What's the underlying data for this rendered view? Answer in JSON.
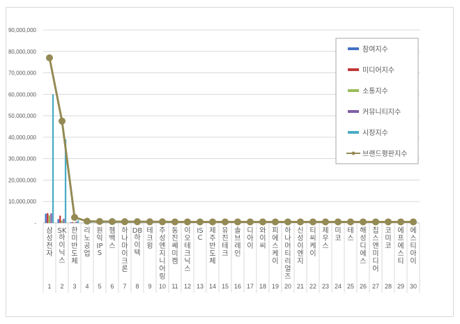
{
  "chart_data": {
    "type": "bar",
    "title": "",
    "xlabel": "",
    "ylabel": "",
    "ylim": [
      0,
      90000000
    ],
    "yticks": [
      "-",
      "10,000,000",
      "20,000,000",
      "30,000,000",
      "40,000,000",
      "50,000,000",
      "60,000,000",
      "70,000,000",
      "80,000,000",
      "90,000,000"
    ],
    "grid": true,
    "legend_position": "right",
    "categories": [
      "삼성전자",
      "SK하이닉스",
      "한미반도체",
      "리노공업",
      "원익IPS",
      "젬백스",
      "하나마이크론",
      "DB하이텍",
      "테크윙",
      "주성엔지니어링",
      "동진쎄미켐",
      "이오테크닉스",
      "ISC",
      "제주반도체",
      "유진테크",
      "솔브레인",
      "디아이",
      "와이씨",
      "피에스케이",
      "하나머티리얼즈",
      "신성이엔지",
      "티씨케이",
      "제우스",
      "미코",
      "테스",
      "해성디에스",
      "칩스앤미디어",
      "코미코",
      "에프에스티",
      "에스티아이"
    ],
    "ranks": [
      1,
      2,
      3,
      4,
      5,
      6,
      7,
      8,
      9,
      10,
      11,
      12,
      13,
      14,
      15,
      16,
      17,
      18,
      19,
      20,
      21,
      22,
      23,
      24,
      25,
      26,
      27,
      28,
      29,
      30
    ],
    "series": [
      {
        "name": "참여지수",
        "type": "bar",
        "color": "#4472c4",
        "values": [
          4300000,
          1800000,
          300000,
          80000,
          60000,
          60000,
          50000,
          50000,
          40000,
          40000,
          40000,
          40000,
          30000,
          30000,
          30000,
          30000,
          30000,
          30000,
          30000,
          30000,
          30000,
          30000,
          30000,
          30000,
          30000,
          30000,
          30000,
          30000,
          30000,
          30000
        ]
      },
      {
        "name": "미디어지수",
        "type": "bar",
        "color": "#c0393b",
        "values": [
          4600000,
          3400000,
          400000,
          120000,
          100000,
          150000,
          100000,
          80000,
          80000,
          80000,
          70000,
          70000,
          60000,
          60000,
          60000,
          60000,
          60000,
          60000,
          60000,
          60000,
          60000,
          60000,
          60000,
          60000,
          60000,
          60000,
          60000,
          60000,
          60000,
          60000
        ]
      },
      {
        "name": "소통지수",
        "type": "bar",
        "color": "#9bbb59",
        "values": [
          3600000,
          1200000,
          200000,
          60000,
          50000,
          50000,
          40000,
          40000,
          30000,
          30000,
          30000,
          30000,
          30000,
          30000,
          30000,
          30000,
          30000,
          30000,
          30000,
          30000,
          30000,
          30000,
          30000,
          30000,
          30000,
          30000,
          30000,
          30000,
          30000,
          30000
        ]
      },
      {
        "name": "커뮤니티지수",
        "type": "bar",
        "color": "#7f5fa6",
        "values": [
          4500000,
          2000000,
          600000,
          100000,
          80000,
          100000,
          60000,
          60000,
          50000,
          50000,
          50000,
          50000,
          40000,
          40000,
          40000,
          40000,
          40000,
          40000,
          40000,
          40000,
          40000,
          40000,
          40000,
          40000,
          40000,
          40000,
          40000,
          40000,
          40000,
          40000
        ]
      },
      {
        "name": "시장지수",
        "type": "bar",
        "color": "#4bacc6",
        "values": [
          60000000,
          39000000,
          1200000,
          500000,
          450000,
          350000,
          300000,
          300000,
          250000,
          250000,
          250000,
          250000,
          200000,
          200000,
          200000,
          200000,
          200000,
          200000,
          200000,
          200000,
          200000,
          200000,
          200000,
          200000,
          200000,
          200000,
          200000,
          200000,
          200000,
          200000
        ]
      },
      {
        "name": "브랜드평판지수",
        "type": "line",
        "color": "#948a54",
        "values": [
          77000000,
          47500000,
          2600000,
          800000,
          700000,
          650000,
          600000,
          600000,
          550000,
          550000,
          500000,
          500000,
          500000,
          500000,
          500000,
          500000,
          500000,
          500000,
          500000,
          500000,
          500000,
          500000,
          500000,
          500000,
          500000,
          500000,
          500000,
          500000,
          500000,
          500000
        ]
      }
    ]
  },
  "colors": {
    "grid": "#d9d9d9",
    "axis_text": "#595959",
    "frame": "#d9d9d9"
  }
}
